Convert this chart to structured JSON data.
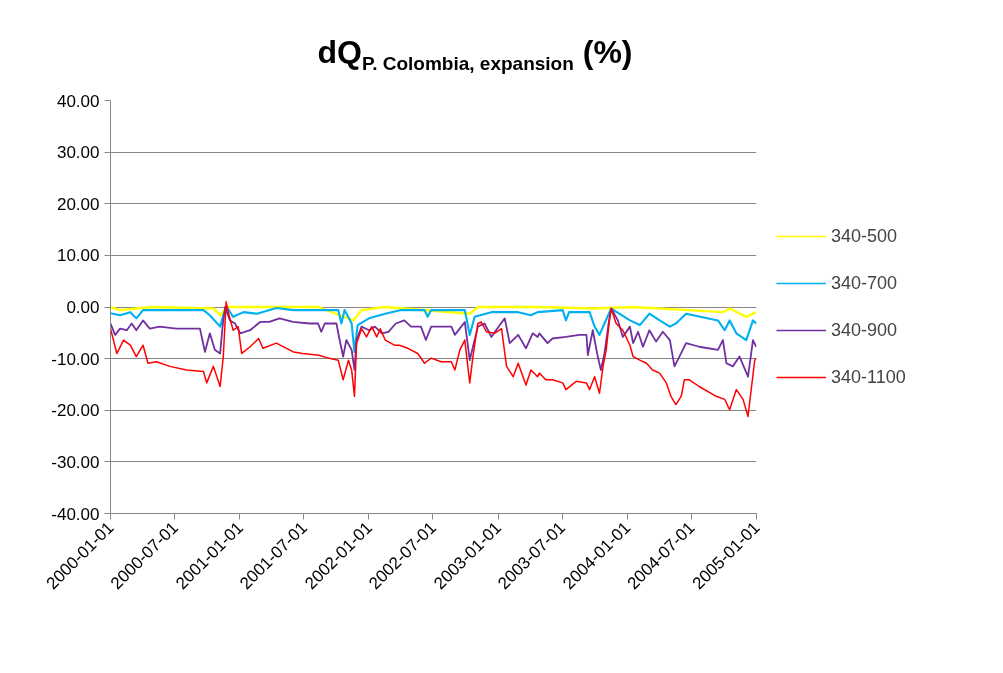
{
  "chart_data": {
    "type": "line",
    "title": "dQ$_{P. Colombia, expansion}$ (%)",
    "xlim": [
      "2000-01-01",
      "2005-01-01"
    ],
    "xticks": [
      "2000-01-01",
      "2000-07-01",
      "2001-01-01",
      "2001-07-01",
      "2002-01-01",
      "2002-07-01",
      "2003-01-01",
      "2003-07-01",
      "2004-01-01",
      "2004-07-01",
      "2005-01-01"
    ],
    "ylim": [
      -40,
      40
    ],
    "yticks": [
      {
        "value": -40,
        "label": "-40.00"
      },
      {
        "value": -30,
        "label": "-30.00"
      },
      {
        "value": -20,
        "label": "-20.00"
      },
      {
        "value": -10,
        "label": "-10.00"
      },
      {
        "value": 0,
        "label": "0.00"
      },
      {
        "value": 10,
        "label": "10.00"
      },
      {
        "value": 20,
        "label": "20.00"
      },
      {
        "value": 30,
        "label": "30.00"
      },
      {
        "value": 40,
        "label": "40.00"
      }
    ],
    "grid": "y",
    "legend": "right",
    "marker": "none",
    "line_style": "solid",
    "series": [
      {
        "name": "340-500",
        "color": "#ffff00",
        "x": [
          "2000-01-01",
          "2000-01-28",
          "2000-03-14",
          "2000-05-01",
          "2000-10-18",
          "2000-11-08",
          "2000-11-25",
          "2001-08-10",
          "2001-11-18",
          "2001-12-11",
          "2002-02-16",
          "2002-10-13",
          "2002-11-05",
          "2003-04-23",
          "2003-09-26",
          "2004-01-18",
          "2004-09-28",
          "2004-10-17",
          "2004-12-03",
          "2004-12-31"
        ],
        "values": [
          0,
          -0.6,
          -0.3,
          0,
          -0.3,
          -1.6,
          0,
          0,
          -2.6,
          -0.6,
          0,
          -1.3,
          0,
          0,
          -0.3,
          0,
          -1,
          -0.3,
          -1.9,
          -1
        ]
      },
      {
        "name": "340-700",
        "color": "#00b0f0",
        "x": [
          "2000-01-01",
          "2000-01-28",
          "2000-02-26",
          "2000-03-14",
          "2000-04-02",
          "2000-06-17",
          "2000-09-20",
          "2000-10-08",
          "2000-11-06",
          "2000-11-15",
          "2000-11-25",
          "2000-12-13",
          "2001-01-11",
          "2001-02-18",
          "2001-04-14",
          "2001-06-01",
          "2001-08-10",
          "2001-10-06",
          "2001-10-15",
          "2001-10-24",
          "2001-11-13",
          "2001-11-21",
          "2001-11-30",
          "2002-01-01",
          "2002-02-16",
          "2002-04-02",
          "2002-06-07",
          "2002-06-16",
          "2002-06-26",
          "2002-09-29",
          "2002-10-13",
          "2002-10-27",
          "2002-12-13",
          "2003-02-27",
          "2003-04-04",
          "2003-04-23",
          "2003-07-03",
          "2003-07-12",
          "2003-07-21",
          "2003-09-17",
          "2003-10-01",
          "2003-10-15",
          "2003-10-29",
          "2003-11-17",
          "2003-12-10",
          "2004-01-09",
          "2004-02-06",
          "2004-03-04",
          "2004-04-02",
          "2004-05-01",
          "2004-05-18",
          "2004-06-16",
          "2004-09-14",
          "2004-10-03",
          "2004-10-17",
          "2004-11-05",
          "2004-12-03",
          "2004-12-22",
          "2004-12-31"
        ],
        "values": [
          -1.2,
          -1.6,
          -1,
          -2.2,
          -0.6,
          -0.6,
          -0.6,
          -1.6,
          -3.8,
          -1.6,
          0,
          -1.9,
          -1,
          -1.3,
          -0.2,
          -0.6,
          -0.6,
          -0.6,
          -3.2,
          -0.6,
          -3.2,
          -8.7,
          -3.5,
          -2.2,
          -1.3,
          -0.6,
          -0.6,
          -1.9,
          -0.6,
          -0.6,
          -5.4,
          -1.9,
          -1,
          -1,
          -1.6,
          -1,
          -0.6,
          -2.6,
          -1,
          -1,
          -3.8,
          -5.4,
          -3.2,
          -0.3,
          -1.3,
          -2.6,
          -3.5,
          -1.3,
          -2.6,
          -3.8,
          -3.2,
          -1.3,
          -2.6,
          -4.5,
          -2.6,
          -5.1,
          -6.4,
          -2.6,
          -3.2
        ]
      },
      {
        "name": "340-900",
        "color": "#7030a0",
        "x": [
          "2000-01-01",
          "2000-01-14",
          "2000-01-28",
          "2000-02-16",
          "2000-03-01",
          "2000-03-14",
          "2000-04-02",
          "2000-04-21",
          "2000-05-19",
          "2000-07-05",
          "2000-09-10",
          "2000-09-24",
          "2000-10-08",
          "2000-10-22",
          "2000-11-06",
          "2000-11-13",
          "2000-11-20",
          "2000-12-04",
          "2000-12-18",
          "2001-01-02",
          "2001-01-30",
          "2001-02-27",
          "2001-03-25",
          "2001-04-23",
          "2001-05-31",
          "2001-07-17",
          "2001-08-10",
          "2001-08-19",
          "2001-08-29",
          "2001-10-01",
          "2001-10-10",
          "2001-10-20",
          "2001-10-29",
          "2001-11-13",
          "2001-11-21",
          "2001-11-27",
          "2001-12-11",
          "2002-01-01",
          "2002-01-18",
          "2002-02-06",
          "2002-02-25",
          "2002-03-18",
          "2002-04-11",
          "2002-04-30",
          "2002-05-28",
          "2002-06-11",
          "2002-06-26",
          "2002-08-22",
          "2002-09-01",
          "2002-09-19",
          "2002-09-29",
          "2002-10-13",
          "2002-10-22",
          "2002-11-05",
          "2002-11-24",
          "2002-12-13",
          "2003-01-06",
          "2003-01-20",
          "2003-02-03",
          "2003-02-27",
          "2003-03-21",
          "2003-04-09",
          "2003-04-23",
          "2003-04-28",
          "2003-05-21",
          "2003-06-04",
          "2003-07-12",
          "2003-08-19",
          "2003-09-08",
          "2003-09-12",
          "2003-09-26",
          "2003-10-10",
          "2003-10-19",
          "2003-10-29",
          "2003-11-11",
          "2003-11-17",
          "2003-12-06",
          "2003-12-20",
          "2004-01-09",
          "2004-01-18",
          "2004-02-01",
          "2004-02-15",
          "2004-03-04",
          "2004-03-23",
          "2004-04-11",
          "2004-05-01",
          "2004-05-14",
          "2004-05-28",
          "2004-06-16",
          "2004-07-23",
          "2004-09-14",
          "2004-09-28",
          "2004-10-08",
          "2004-10-26",
          "2004-11-14",
          "2004-12-08",
          "2004-12-22",
          "2004-12-31"
        ],
        "values": [
          -3.2,
          -5.4,
          -4.2,
          -4.5,
          -3.2,
          -4.5,
          -2.6,
          -4.2,
          -3.8,
          -4.2,
          -4.2,
          -8.7,
          -5.1,
          -8.3,
          -9,
          -3.8,
          0,
          -2.6,
          -3.2,
          -5.1,
          -4.5,
          -2.9,
          -2.9,
          -2.2,
          -2.9,
          -3.2,
          -3.2,
          -4.8,
          -3.2,
          -3.2,
          -6.4,
          -9.6,
          -6.4,
          -8.3,
          -12.2,
          -6.4,
          -3.8,
          -4.5,
          -3.8,
          -5.1,
          -4.8,
          -3.2,
          -2.6,
          -3.8,
          -3.8,
          -6.4,
          -3.8,
          -3.8,
          -5.4,
          -3.8,
          -2.9,
          -10.3,
          -7.7,
          -3.8,
          -3.2,
          -5.8,
          -3.5,
          -2.2,
          -7,
          -5.4,
          -8,
          -5.1,
          -5.8,
          -5.1,
          -7,
          -6.1,
          -5.8,
          -5.4,
          -5.4,
          -9.3,
          -4.5,
          -9.6,
          -12.2,
          -9,
          -2.6,
          -0.3,
          -2.6,
          -5.8,
          -3.8,
          -7,
          -4.8,
          -7.7,
          -4.5,
          -6.7,
          -4.8,
          -6.4,
          -11.5,
          -9.6,
          -7,
          -7.7,
          -8.3,
          -6.4,
          -10.9,
          -11.5,
          -9.6,
          -13.5,
          -6.4,
          -7.7
        ]
      },
      {
        "name": "340-1100",
        "color": "#ff0000",
        "x": [
          "2000-01-01",
          "2000-01-19",
          "2000-02-07",
          "2000-02-26",
          "2000-03-14",
          "2000-04-02",
          "2000-04-16",
          "2000-05-10",
          "2000-06-17",
          "2000-08-03",
          "2000-09-20",
          "2000-09-29",
          "2000-10-18",
          "2000-11-06",
          "2000-11-15",
          "2000-11-23",
          "2000-11-30",
          "2000-12-13",
          "2000-12-27",
          "2001-01-06",
          "2001-01-30",
          "2001-02-23",
          "2001-03-07",
          "2001-04-14",
          "2001-06-01",
          "2001-06-28",
          "2001-08-06",
          "2001-08-10",
          "2001-09-08",
          "2001-10-06",
          "2001-10-20",
          "2001-11-04",
          "2001-11-13",
          "2001-11-21",
          "2001-11-27",
          "2001-12-11",
          "2001-12-25",
          "2002-01-09",
          "2002-01-23",
          "2002-02-02",
          "2002-02-16",
          "2002-03-14",
          "2002-03-28",
          "2002-04-21",
          "2002-05-19",
          "2002-06-07",
          "2002-06-26",
          "2002-07-24",
          "2002-08-22",
          "2002-09-01",
          "2002-09-15",
          "2002-09-29",
          "2002-10-13",
          "2002-10-22",
          "2002-11-05",
          "2002-11-15",
          "2002-11-29",
          "2002-12-22",
          "2003-01-11",
          "2003-01-25",
          "2003-02-13",
          "2003-02-27",
          "2003-03-21",
          "2003-04-04",
          "2003-04-23",
          "2003-04-28",
          "2003-05-16",
          "2003-06-04",
          "2003-07-03",
          "2003-07-12",
          "2003-08-10",
          "2003-09-08",
          "2003-09-17",
          "2003-10-01",
          "2003-10-15",
          "2003-10-25",
          "2003-11-03",
          "2003-11-11",
          "2003-11-17",
          "2003-12-01",
          "2003-12-20",
          "2004-01-09",
          "2004-01-18",
          "2004-02-06",
          "2004-02-25",
          "2004-03-13",
          "2004-04-02",
          "2004-04-21",
          "2004-05-04",
          "2004-05-18",
          "2004-06-02",
          "2004-06-11",
          "2004-06-25",
          "2004-07-23",
          "2004-09-09",
          "2004-10-03",
          "2004-10-17",
          "2004-11-05",
          "2004-11-24",
          "2004-12-08",
          "2004-12-17",
          "2004-12-27",
          "2004-12-31"
        ],
        "values": [
          -4.2,
          -9,
          -6.4,
          -7.4,
          -9.6,
          -7.4,
          -10.9,
          -10.6,
          -11.5,
          -12.2,
          -12.5,
          -14.7,
          -11.5,
          -15.4,
          -9.6,
          1,
          -1.3,
          -4.5,
          -3.8,
          -9,
          -7.7,
          -6.1,
          -8,
          -7,
          -8.7,
          -9,
          -9.3,
          -9.3,
          -9.9,
          -10.3,
          -14.1,
          -10.3,
          -12.2,
          -17.3,
          -7,
          -4.2,
          -5.8,
          -3.8,
          -5.8,
          -4.2,
          -6.4,
          -7.4,
          -7.4,
          -8,
          -9,
          -10.9,
          -9.9,
          -10.6,
          -10.6,
          -12.2,
          -8.3,
          -6.4,
          -14.7,
          -9.6,
          -3.2,
          -2.9,
          -4.8,
          -5.1,
          -4.2,
          -11.5,
          -13.5,
          -10.9,
          -15.1,
          -12.2,
          -13.5,
          -12.8,
          -14.1,
          -14.1,
          -14.7,
          -16,
          -14.4,
          -14.7,
          -16,
          -13.5,
          -16.7,
          -11.5,
          -8.3,
          -3.2,
          -0.3,
          -3.2,
          -4.5,
          -7.4,
          -9.6,
          -10.3,
          -10.9,
          -12.2,
          -12.8,
          -14.7,
          -17.3,
          -18.9,
          -17.3,
          -14.1,
          -14.1,
          -15.4,
          -17.3,
          -17.9,
          -19.9,
          -16,
          -17.9,
          -21.2,
          -16,
          -10.3,
          -9.9
        ]
      }
    ]
  }
}
